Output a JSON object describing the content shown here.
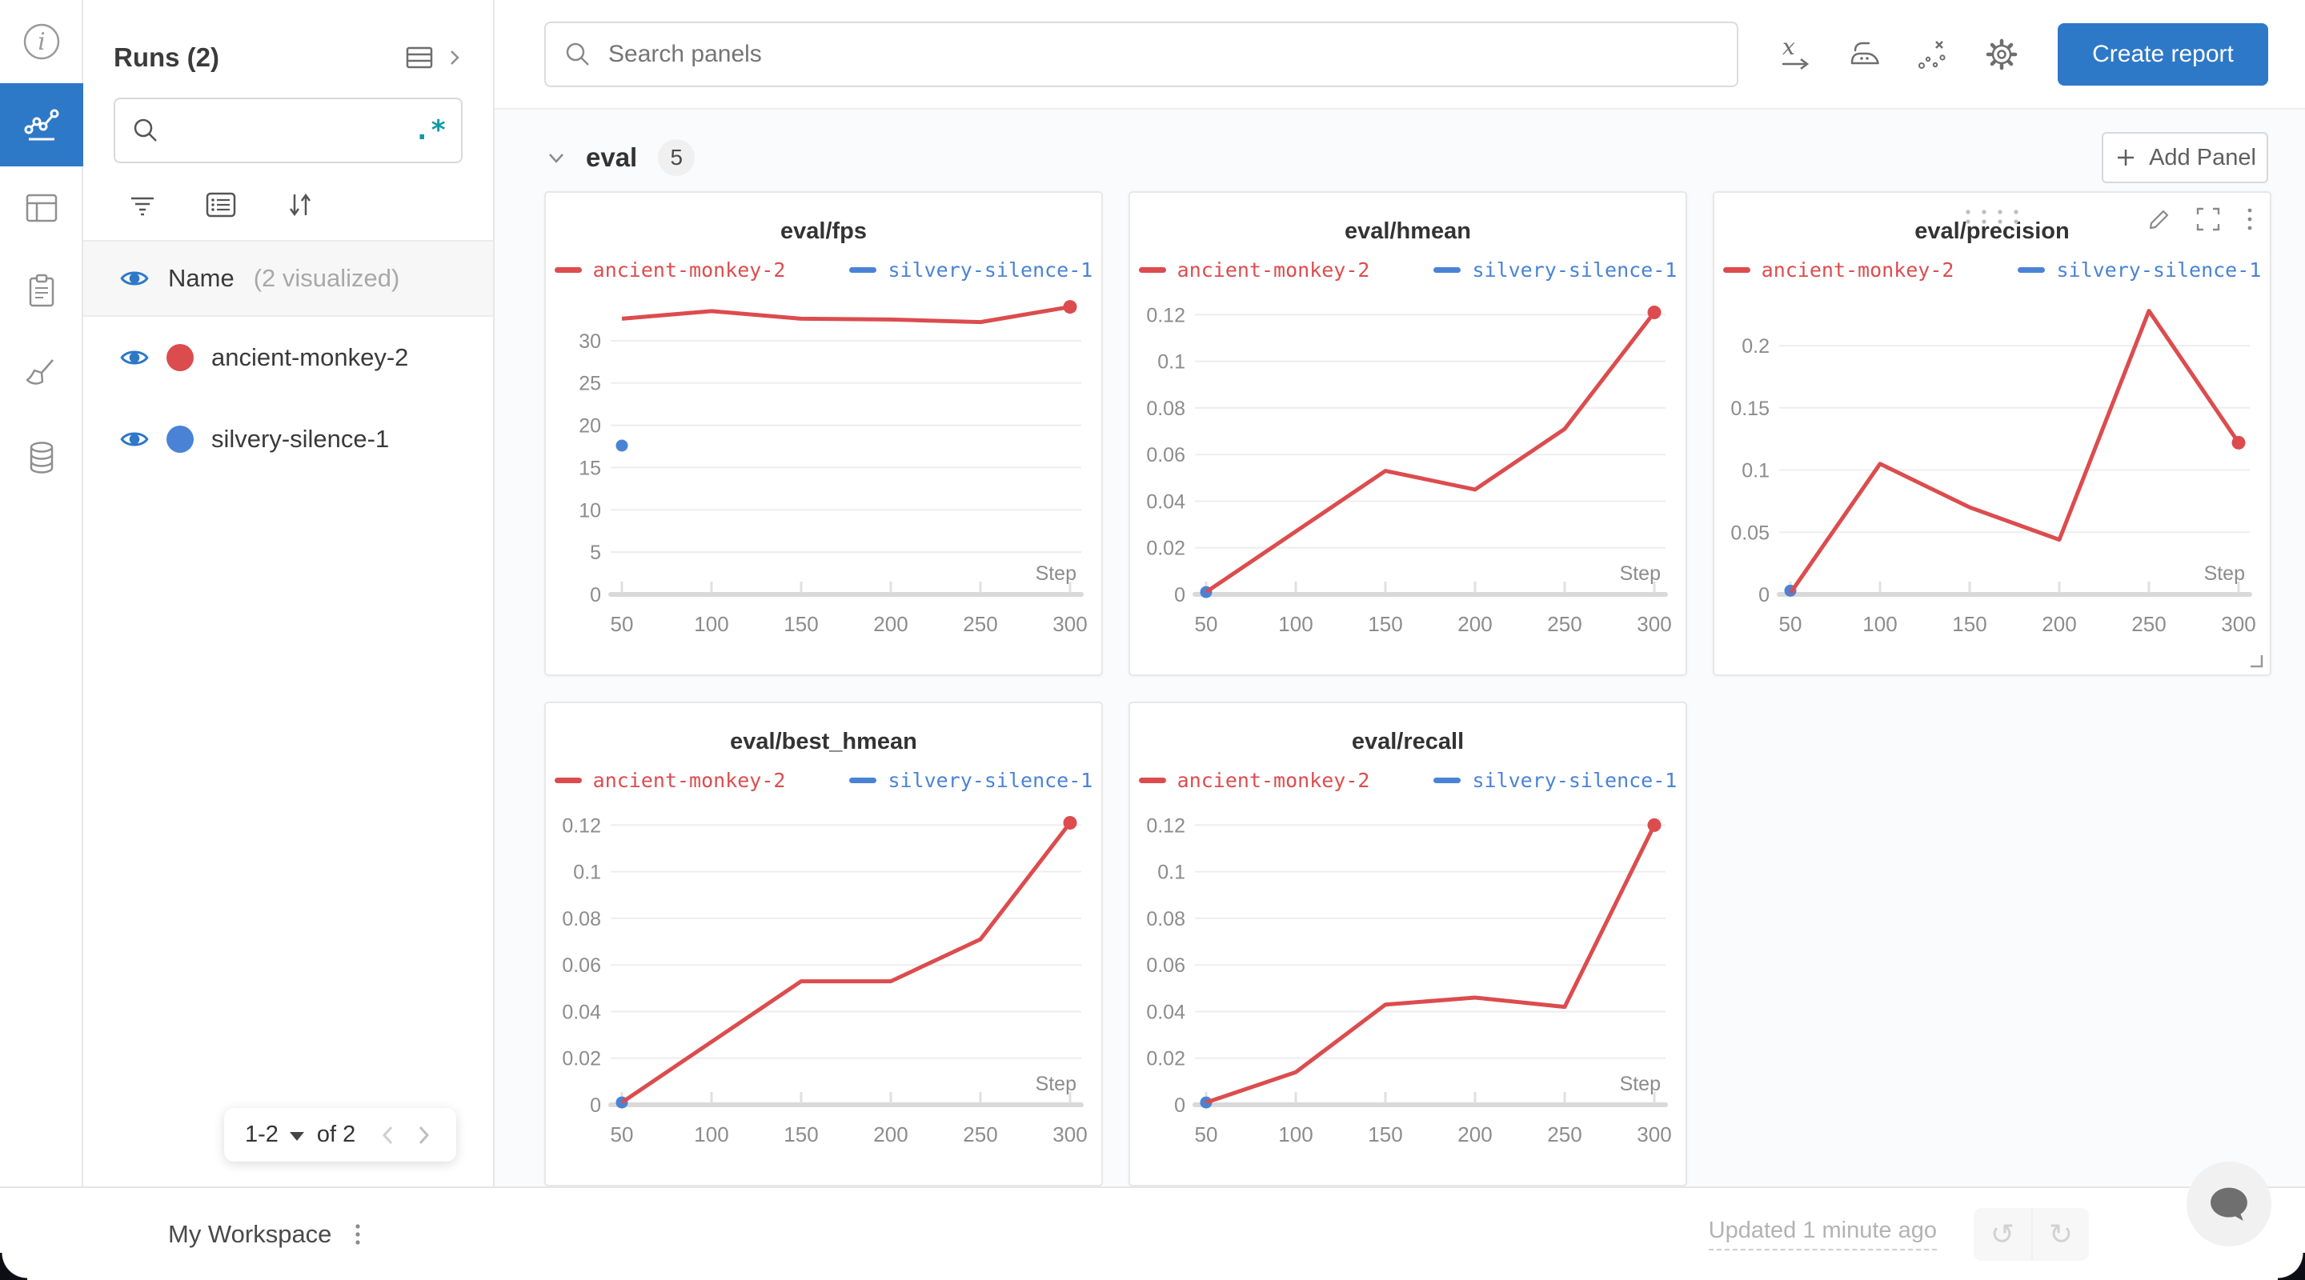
{
  "colors": {
    "accent_blue": "#2e78c8",
    "run_red": "#dc4c4e",
    "run_blue": "#4a83d6",
    "regex_teal": "#0f9ba3"
  },
  "rail": {
    "items": [
      {
        "name": "overview",
        "icon": "info-icon",
        "active": false
      },
      {
        "name": "workspace",
        "icon": "line-chart-icon",
        "active": true
      },
      {
        "name": "runs-table",
        "icon": "table-icon",
        "active": false
      },
      {
        "name": "logs",
        "icon": "clipboard-icon",
        "active": false
      },
      {
        "name": "sweeps",
        "icon": "broom-icon",
        "active": false
      },
      {
        "name": "artifacts",
        "icon": "database-icon",
        "active": false
      }
    ]
  },
  "sidebar": {
    "title": "Runs (2)",
    "search": {
      "value": "",
      "placeholder": "",
      "regex_label": ".*"
    },
    "header": {
      "label": "Name",
      "note": "(2 visualized)"
    },
    "runs": [
      {
        "name": "ancient-monkey-2",
        "color": "#dc4c4e",
        "visible": true
      },
      {
        "name": "silvery-silence-1",
        "color": "#4a83d6",
        "visible": true
      }
    ],
    "pagination": {
      "range": "1-2",
      "of": "of 2"
    }
  },
  "topbar": {
    "search_placeholder": "Search panels",
    "create_report_label": "Create report"
  },
  "section": {
    "title": "eval",
    "badge": "5",
    "add_panel_label": "Add Panel"
  },
  "chart_data": [
    {
      "type": "line",
      "title": "eval/fps",
      "xlabel": "Step",
      "x": [
        50,
        100,
        150,
        200,
        250,
        300
      ],
      "xticks": [
        50,
        100,
        150,
        200,
        250,
        300
      ],
      "yticks": [
        0,
        5,
        10,
        15,
        20,
        25,
        30
      ],
      "ylim": [
        0,
        35
      ],
      "grid": true,
      "legend_position": "top",
      "hovered": false,
      "series": [
        {
          "name": "ancient-monkey-2",
          "color": "#dc4c4e",
          "values": [
            32.6,
            33.5,
            32.6,
            32.5,
            32.2,
            34.0
          ],
          "end_dot": true
        },
        {
          "name": "silvery-silence-1",
          "color": "#4a83d6",
          "points": [
            [
              50,
              17.6
            ]
          ]
        }
      ]
    },
    {
      "type": "line",
      "title": "eval/hmean",
      "xlabel": "Step",
      "x": [
        50,
        100,
        150,
        200,
        250,
        300
      ],
      "xticks": [
        50,
        100,
        150,
        200,
        250,
        300
      ],
      "yticks": [
        0,
        0.02,
        0.04,
        0.06,
        0.08,
        0.1,
        0.12
      ],
      "ylim": [
        0,
        0.127
      ],
      "grid": true,
      "legend_position": "top",
      "hovered": false,
      "series": [
        {
          "name": "ancient-monkey-2",
          "color": "#dc4c4e",
          "values": [
            0.001,
            0.027,
            0.053,
            0.045,
            0.071,
            0.121
          ],
          "end_dot": true
        },
        {
          "name": "silvery-silence-1",
          "color": "#4a83d6",
          "points": [
            [
              50,
              0.001
            ]
          ]
        }
      ]
    },
    {
      "type": "line",
      "title": "eval/precision",
      "xlabel": "Step",
      "x": [
        50,
        100,
        150,
        200,
        250,
        300
      ],
      "xticks": [
        50,
        100,
        150,
        200,
        250,
        300
      ],
      "yticks": [
        0,
        0.05,
        0.1,
        0.15,
        0.2
      ],
      "ylim": [
        0,
        0.238
      ],
      "grid": true,
      "legend_position": "top",
      "hovered": true,
      "series": [
        {
          "name": "ancient-monkey-2",
          "color": "#dc4c4e",
          "values": [
            0.001,
            0.105,
            0.07,
            0.044,
            0.228,
            0.122
          ],
          "end_dot": true
        },
        {
          "name": "silvery-silence-1",
          "color": "#4a83d6",
          "points": [
            [
              50,
              0.003
            ]
          ]
        }
      ]
    },
    {
      "type": "line",
      "title": "eval/best_hmean",
      "xlabel": "Step",
      "x": [
        50,
        100,
        150,
        200,
        250,
        300
      ],
      "xticks": [
        50,
        100,
        150,
        200,
        250,
        300
      ],
      "yticks": [
        0,
        0.02,
        0.04,
        0.06,
        0.08,
        0.1,
        0.12
      ],
      "ylim": [
        0,
        0.127
      ],
      "grid": true,
      "legend_position": "top",
      "hovered": false,
      "series": [
        {
          "name": "ancient-monkey-2",
          "color": "#dc4c4e",
          "values": [
            0.001,
            0.027,
            0.053,
            0.053,
            0.071,
            0.121
          ],
          "end_dot": true
        },
        {
          "name": "silvery-silence-1",
          "color": "#4a83d6",
          "points": [
            [
              50,
              0.001
            ]
          ]
        }
      ]
    },
    {
      "type": "line",
      "title": "eval/recall",
      "xlabel": "Step",
      "x": [
        50,
        100,
        150,
        200,
        250,
        300
      ],
      "xticks": [
        50,
        100,
        150,
        200,
        250,
        300
      ],
      "yticks": [
        0,
        0.02,
        0.04,
        0.06,
        0.08,
        0.1,
        0.12
      ],
      "ylim": [
        0,
        0.127
      ],
      "grid": true,
      "legend_position": "top",
      "hovered": false,
      "series": [
        {
          "name": "ancient-monkey-2",
          "color": "#dc4c4e",
          "values": [
            0.001,
            0.014,
            0.043,
            0.046,
            0.042,
            0.12
          ],
          "end_dot": true
        },
        {
          "name": "silvery-silence-1",
          "color": "#4a83d6",
          "points": [
            [
              50,
              0.001
            ]
          ]
        }
      ]
    }
  ],
  "footer": {
    "workspace_label": "My Workspace",
    "updated_label": "Updated 1 minute ago",
    "undo_icon": "↺",
    "redo_icon": "↻"
  }
}
